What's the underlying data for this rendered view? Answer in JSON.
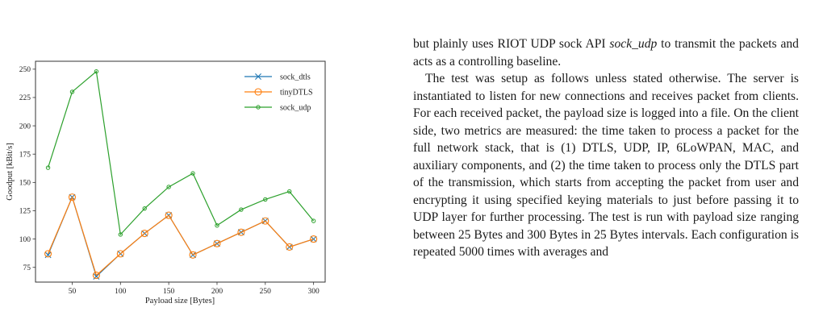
{
  "chart_data": {
    "type": "line",
    "x": [
      25,
      50,
      75,
      100,
      125,
      150,
      175,
      200,
      225,
      250,
      275,
      300
    ],
    "series": [
      {
        "name": "sock_dtls",
        "color": "#1f77b4",
        "marker": "x",
        "values": [
          86,
          137,
          67,
          87,
          105,
          121,
          86,
          96,
          106,
          116,
          93,
          100
        ]
      },
      {
        "name": "tinyDTLS",
        "color": "#ff7f0e",
        "marker": "o",
        "values": [
          87,
          137,
          68,
          87,
          105,
          121,
          86,
          96,
          106,
          116,
          93,
          100
        ]
      },
      {
        "name": "sock_udp",
        "color": "#2ca02c",
        "marker": ".",
        "values": [
          163,
          230,
          248,
          104,
          127,
          146,
          158,
          112,
          126,
          135,
          142,
          116
        ]
      }
    ],
    "xlabel": "Payload size [Bytes]",
    "ylabel": "Goodput [kBit/s]",
    "xlim": [
      12,
      312
    ],
    "ylim": [
      62,
      257
    ],
    "xticks": [
      50,
      100,
      150,
      200,
      250,
      300
    ],
    "yticks": [
      75,
      100,
      125,
      150,
      175,
      200,
      225,
      250
    ],
    "grid": false,
    "legend": "top-right"
  },
  "text": {
    "para1_start": "but plainly uses RIOT UDP sock API ",
    "para1_italic": "sock_udp",
    "para1_end": " to transmit the packets and acts as a controlling baseline.",
    "para2": "The test was setup as follows unless stated otherwise. The server is instantiated to listen for new connections and receives packet from clients. For each received packet, the payload size is logged into a file. On the client side, two metrics are measured: the time taken to process a packet for the full network stack, that is (1) DTLS, UDP, IP, 6LoWPAN, MAC, and auxiliary components, and (2) the time taken to process only the DTLS part of the transmission, which starts from accepting the packet from user and encrypting it using specified keying materials to just before passing it to UDP layer for further processing. The test is run with payload size ranging between 25 Bytes and 300 Bytes in 25 Bytes intervals. Each configuration is repeated 5000 times with averages and"
  }
}
